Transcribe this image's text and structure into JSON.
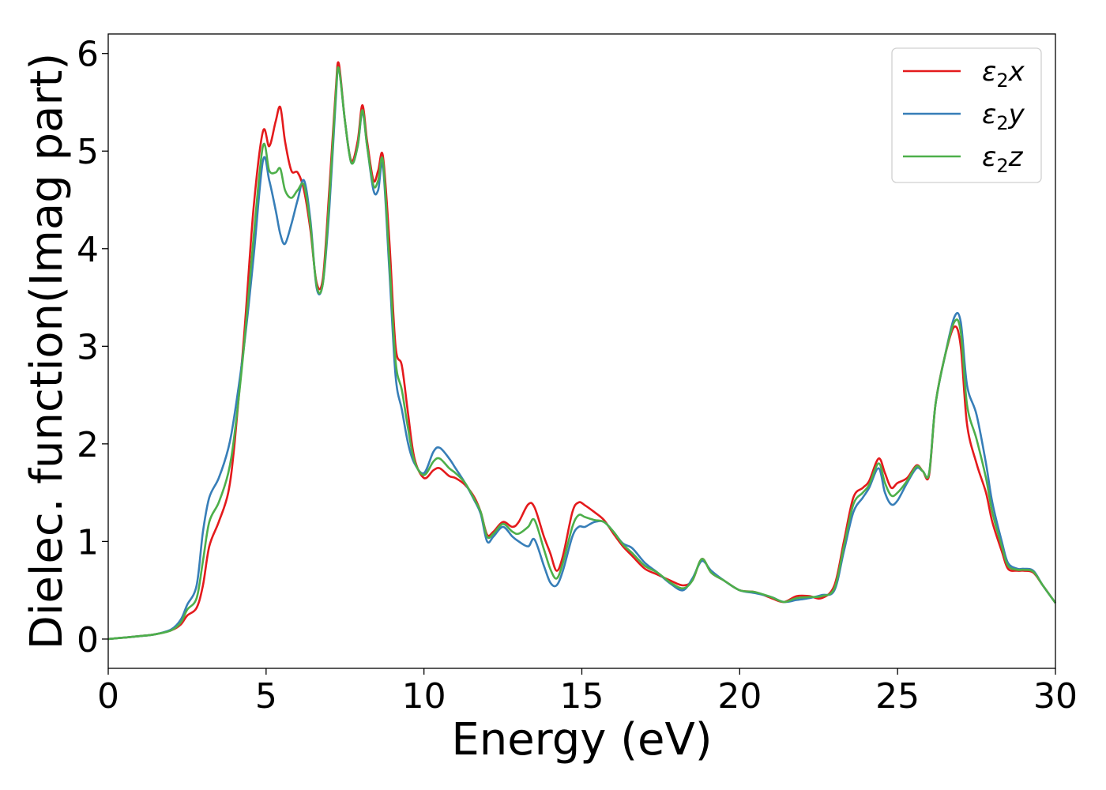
{
  "chart_data": {
    "type": "line",
    "title": "",
    "xlabel": "Energy (eV)",
    "ylabel": "Dielec. function(Imag part)",
    "xlim": [
      0,
      30
    ],
    "ylim": [
      -0.3,
      6.2
    ],
    "xticks": [
      0,
      5,
      10,
      15,
      20,
      25,
      30
    ],
    "yticks": [
      0,
      1,
      2,
      3,
      4,
      5,
      6
    ],
    "xtick_labels": [
      "0",
      "5",
      "10",
      "15",
      "20",
      "25",
      "30"
    ],
    "ytick_labels": [
      "0",
      "1",
      "2",
      "3",
      "4",
      "5",
      "6"
    ],
    "grid": false,
    "legend_position": "top-right",
    "series": [
      {
        "name": "ε₂x",
        "label_main": "ε",
        "label_sub": "2",
        "label_suffix": "x",
        "color": "#e41a1c",
        "x": [
          0,
          1,
          1.5,
          2,
          2.3,
          2.5,
          2.8,
          3.0,
          3.2,
          3.5,
          3.8,
          4.0,
          4.3,
          4.6,
          4.9,
          5.1,
          5.3,
          5.45,
          5.6,
          5.8,
          6.0,
          6.2,
          6.4,
          6.6,
          6.8,
          7.0,
          7.2,
          7.3,
          7.5,
          7.7,
          7.9,
          8.05,
          8.2,
          8.4,
          8.55,
          8.7,
          8.9,
          9.1,
          9.3,
          9.5,
          9.7,
          10.0,
          10.3,
          10.5,
          10.8,
          11.0,
          11.3,
          11.6,
          11.8,
          12.0,
          12.2,
          12.5,
          12.8,
          13.0,
          13.3,
          13.5,
          13.8,
          14.0,
          14.2,
          14.4,
          14.7,
          14.9,
          15.1,
          15.4,
          15.7,
          16.0,
          16.3,
          16.6,
          17.0,
          17.4,
          17.8,
          18.2,
          18.5,
          18.8,
          19.1,
          19.5,
          20.0,
          20.5,
          21.0,
          21.4,
          21.8,
          22.2,
          22.6,
          23.0,
          23.3,
          23.6,
          23.9,
          24.1,
          24.4,
          24.6,
          24.8,
          25.0,
          25.3,
          25.6,
          25.8,
          26.0,
          26.2,
          26.5,
          26.8,
          27.0,
          27.2,
          27.5,
          27.8,
          28.0,
          28.3,
          28.5,
          28.8,
          29.0,
          29.3,
          29.6,
          30.0
        ],
        "y": [
          0.0,
          0.03,
          0.05,
          0.09,
          0.15,
          0.24,
          0.32,
          0.55,
          0.95,
          1.2,
          1.5,
          2.0,
          3.1,
          4.4,
          5.2,
          5.05,
          5.3,
          5.45,
          5.1,
          4.8,
          4.78,
          4.6,
          4.2,
          3.65,
          3.7,
          4.6,
          5.6,
          5.9,
          5.3,
          4.9,
          5.1,
          5.47,
          5.1,
          4.7,
          4.8,
          4.95,
          4.1,
          3.0,
          2.8,
          2.3,
          1.85,
          1.65,
          1.73,
          1.75,
          1.67,
          1.65,
          1.58,
          1.45,
          1.3,
          1.07,
          1.1,
          1.2,
          1.15,
          1.2,
          1.38,
          1.35,
          1.05,
          0.88,
          0.7,
          0.85,
          1.3,
          1.4,
          1.37,
          1.3,
          1.22,
          1.08,
          0.95,
          0.85,
          0.72,
          0.66,
          0.6,
          0.55,
          0.6,
          0.82,
          0.68,
          0.6,
          0.5,
          0.48,
          0.42,
          0.38,
          0.44,
          0.44,
          0.42,
          0.55,
          1.0,
          1.45,
          1.55,
          1.62,
          1.85,
          1.7,
          1.55,
          1.6,
          1.65,
          1.78,
          1.72,
          1.68,
          2.4,
          2.9,
          3.2,
          3.0,
          2.2,
          1.8,
          1.5,
          1.2,
          0.9,
          0.72,
          0.7,
          0.7,
          0.68,
          0.55,
          0.37
        ]
      },
      {
        "name": "ε₂y",
        "label_main": "ε",
        "label_sub": "2",
        "label_suffix": "y",
        "color": "#377eb8",
        "x": [
          0,
          1,
          1.5,
          2,
          2.3,
          2.5,
          2.8,
          3.0,
          3.2,
          3.5,
          3.8,
          4.0,
          4.3,
          4.6,
          4.9,
          5.1,
          5.3,
          5.45,
          5.6,
          5.8,
          6.0,
          6.2,
          6.4,
          6.6,
          6.8,
          7.0,
          7.2,
          7.3,
          7.5,
          7.7,
          7.9,
          8.05,
          8.2,
          8.4,
          8.55,
          8.7,
          8.9,
          9.1,
          9.3,
          9.5,
          9.7,
          10.0,
          10.3,
          10.5,
          10.8,
          11.0,
          11.3,
          11.6,
          11.8,
          12.0,
          12.2,
          12.5,
          12.8,
          13.0,
          13.3,
          13.5,
          13.8,
          14.0,
          14.2,
          14.4,
          14.7,
          14.9,
          15.1,
          15.4,
          15.7,
          16.0,
          16.3,
          16.6,
          17.0,
          17.4,
          17.8,
          18.2,
          18.5,
          18.8,
          19.1,
          19.5,
          20.0,
          20.5,
          21.0,
          21.4,
          21.8,
          22.2,
          22.6,
          23.0,
          23.3,
          23.6,
          23.9,
          24.1,
          24.4,
          24.6,
          24.8,
          25.0,
          25.3,
          25.6,
          25.8,
          26.0,
          26.2,
          26.5,
          26.8,
          27.0,
          27.2,
          27.5,
          27.8,
          28.0,
          28.3,
          28.5,
          28.8,
          29.0,
          29.3,
          29.6,
          30.0
        ],
        "y": [
          0.0,
          0.03,
          0.05,
          0.1,
          0.2,
          0.35,
          0.55,
          1.1,
          1.45,
          1.65,
          1.95,
          2.3,
          3.0,
          3.9,
          4.9,
          4.7,
          4.4,
          4.15,
          4.05,
          4.25,
          4.5,
          4.7,
          4.3,
          3.6,
          3.65,
          4.4,
          5.5,
          5.85,
          5.3,
          4.88,
          5.05,
          5.4,
          5.05,
          4.6,
          4.6,
          4.85,
          3.8,
          2.7,
          2.35,
          2.0,
          1.8,
          1.7,
          1.92,
          1.96,
          1.85,
          1.75,
          1.6,
          1.42,
          1.28,
          1.0,
          1.05,
          1.15,
          1.05,
          1.0,
          0.95,
          1.02,
          0.75,
          0.58,
          0.55,
          0.7,
          1.05,
          1.15,
          1.15,
          1.2,
          1.2,
          1.1,
          0.98,
          0.93,
          0.78,
          0.68,
          0.57,
          0.5,
          0.62,
          0.8,
          0.7,
          0.6,
          0.5,
          0.47,
          0.43,
          0.38,
          0.4,
          0.42,
          0.45,
          0.5,
          0.9,
          1.3,
          1.45,
          1.55,
          1.75,
          1.5,
          1.38,
          1.42,
          1.6,
          1.75,
          1.72,
          1.7,
          2.4,
          2.9,
          3.3,
          3.25,
          2.6,
          2.3,
          1.8,
          1.4,
          1.0,
          0.78,
          0.72,
          0.72,
          0.7,
          0.55,
          0.37
        ]
      },
      {
        "name": "ε₂z",
        "label_main": "ε",
        "label_sub": "2",
        "label_suffix": "z",
        "color": "#4daf4a",
        "x": [
          0,
          1,
          1.5,
          2,
          2.3,
          2.5,
          2.8,
          3.0,
          3.2,
          3.5,
          3.8,
          4.0,
          4.3,
          4.6,
          4.9,
          5.1,
          5.3,
          5.45,
          5.6,
          5.8,
          6.0,
          6.2,
          6.4,
          6.6,
          6.8,
          7.0,
          7.2,
          7.3,
          7.5,
          7.7,
          7.9,
          8.05,
          8.2,
          8.4,
          8.55,
          8.7,
          8.9,
          9.1,
          9.3,
          9.5,
          9.7,
          10.0,
          10.3,
          10.5,
          10.8,
          11.0,
          11.3,
          11.6,
          11.8,
          12.0,
          12.2,
          12.5,
          12.8,
          13.0,
          13.3,
          13.5,
          13.8,
          14.0,
          14.2,
          14.4,
          14.7,
          14.9,
          15.1,
          15.4,
          15.7,
          16.0,
          16.3,
          16.6,
          17.0,
          17.4,
          17.8,
          18.2,
          18.5,
          18.8,
          19.1,
          19.5,
          20.0,
          20.5,
          21.0,
          21.4,
          21.8,
          22.2,
          22.6,
          23.0,
          23.3,
          23.6,
          23.9,
          24.1,
          24.4,
          24.6,
          24.8,
          25.0,
          25.3,
          25.6,
          25.8,
          26.0,
          26.2,
          26.5,
          26.8,
          27.0,
          27.2,
          27.5,
          27.8,
          28.0,
          28.3,
          28.5,
          28.8,
          29.0,
          29.3,
          29.6,
          30.0
        ],
        "y": [
          0.0,
          0.03,
          0.05,
          0.09,
          0.17,
          0.3,
          0.42,
          0.8,
          1.2,
          1.4,
          1.7,
          2.1,
          3.0,
          4.1,
          5.05,
          4.8,
          4.78,
          4.82,
          4.6,
          4.52,
          4.6,
          4.65,
          4.25,
          3.62,
          3.65,
          4.5,
          5.55,
          5.85,
          5.3,
          4.88,
          5.05,
          5.42,
          5.05,
          4.65,
          4.7,
          4.9,
          3.9,
          2.85,
          2.55,
          2.15,
          1.82,
          1.68,
          1.82,
          1.85,
          1.75,
          1.7,
          1.6,
          1.43,
          1.3,
          1.05,
          1.08,
          1.18,
          1.1,
          1.08,
          1.15,
          1.22,
          0.92,
          0.72,
          0.62,
          0.78,
          1.15,
          1.27,
          1.25,
          1.22,
          1.2,
          1.1,
          0.97,
          0.88,
          0.75,
          0.68,
          0.58,
          0.52,
          0.6,
          0.82,
          0.68,
          0.6,
          0.5,
          0.48,
          0.43,
          0.38,
          0.42,
          0.43,
          0.44,
          0.52,
          0.95,
          1.38,
          1.5,
          1.58,
          1.8,
          1.6,
          1.47,
          1.5,
          1.62,
          1.77,
          1.72,
          1.7,
          2.4,
          2.9,
          3.25,
          3.15,
          2.4,
          2.05,
          1.65,
          1.3,
          0.95,
          0.75,
          0.71,
          0.71,
          0.69,
          0.55,
          0.37
        ]
      }
    ]
  }
}
